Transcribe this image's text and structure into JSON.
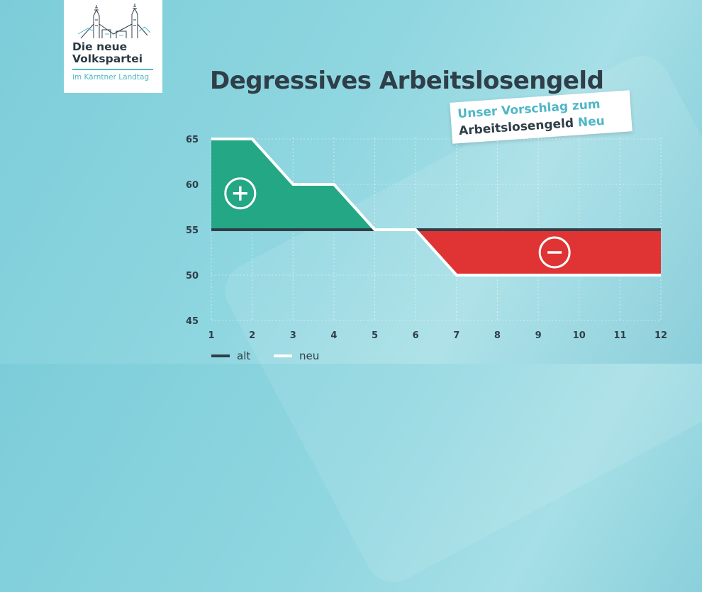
{
  "logo": {
    "line1": "Die neue",
    "line2": "Volkspartei",
    "sub": "im Kärntner Landtag"
  },
  "title": "Degressives Arbeitslosengeld",
  "callout": {
    "line1": "Unser Vorschlag zum",
    "line2_main": "Arbeitslosengeld",
    "line2_accent": "Neu"
  },
  "colors": {
    "gain": "#24a785",
    "loss": "#e03434",
    "alt_line": "#2f3e48",
    "neu_line": "#ffffff",
    "text_dark": "#2f3e48",
    "accent": "#4fb7c6"
  },
  "chart_data": {
    "type": "line",
    "x": [
      1,
      2,
      3,
      4,
      5,
      6,
      7,
      8,
      9,
      10,
      11,
      12
    ],
    "xlim": [
      1,
      12
    ],
    "ylim": [
      45,
      65
    ],
    "x_ticks": [
      "1",
      "2",
      "3",
      "4",
      "5",
      "6",
      "7",
      "8",
      "9",
      "10",
      "11",
      "12"
    ],
    "y_ticks": [
      "65",
      "60",
      "55",
      "50",
      "45"
    ],
    "grid": "vertical dashed",
    "series": [
      {
        "name": "alt",
        "x": [
          1,
          12
        ],
        "values": [
          55,
          55
        ]
      },
      {
        "name": "neu",
        "x": [
          1,
          2,
          3,
          4,
          5,
          6,
          7,
          12
        ],
        "values": [
          65,
          65,
          60,
          60,
          55,
          55,
          50,
          50
        ]
      }
    ],
    "annotations": [
      {
        "symbol": "+",
        "meaning": "neu above alt",
        "x": 1.5,
        "y": 59
      },
      {
        "symbol": "−",
        "meaning": "neu below alt",
        "x": 9.4,
        "y": 52.5
      }
    ],
    "legend": [
      "alt",
      "neu"
    ],
    "legend_position": "bottom-left"
  }
}
